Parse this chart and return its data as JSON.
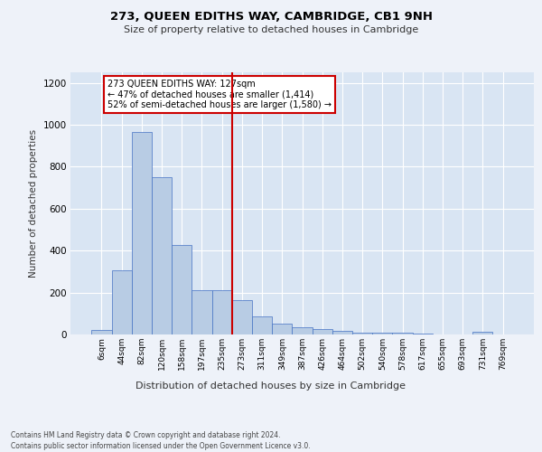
{
  "title": "273, QUEEN EDITHS WAY, CAMBRIDGE, CB1 9NH",
  "subtitle": "Size of property relative to detached houses in Cambridge",
  "xlabel": "Distribution of detached houses by size in Cambridge",
  "ylabel": "Number of detached properties",
  "categories": [
    "6sqm",
    "44sqm",
    "82sqm",
    "120sqm",
    "158sqm",
    "197sqm",
    "235sqm",
    "273sqm",
    "311sqm",
    "349sqm",
    "387sqm",
    "426sqm",
    "464sqm",
    "502sqm",
    "540sqm",
    "578sqm",
    "617sqm",
    "655sqm",
    "693sqm",
    "731sqm",
    "769sqm"
  ],
  "values": [
    22,
    305,
    965,
    748,
    425,
    210,
    210,
    165,
    85,
    50,
    35,
    28,
    17,
    10,
    7,
    7,
    4,
    2,
    2,
    14,
    2
  ],
  "bar_color": "#b8cce4",
  "bar_edge_color": "#4472c4",
  "highlight_line_index": 7,
  "highlight_line_color": "#cc0000",
  "annotation_text": "273 QUEEN EDITHS WAY: 127sqm\n← 47% of detached houses are smaller (1,414)\n52% of semi-detached houses are larger (1,580) →",
  "annotation_box_color": "#cc0000",
  "annotation_box_facecolor": "white",
  "ylim": [
    0,
    1250
  ],
  "yticks": [
    0,
    200,
    400,
    600,
    800,
    1000,
    1200
  ],
  "footer_line1": "Contains HM Land Registry data © Crown copyright and database right 2024.",
  "footer_line2": "Contains public sector information licensed under the Open Government Licence v3.0.",
  "background_color": "#eef2f9",
  "plot_bg_color": "#d9e5f3",
  "grid_color": "white"
}
